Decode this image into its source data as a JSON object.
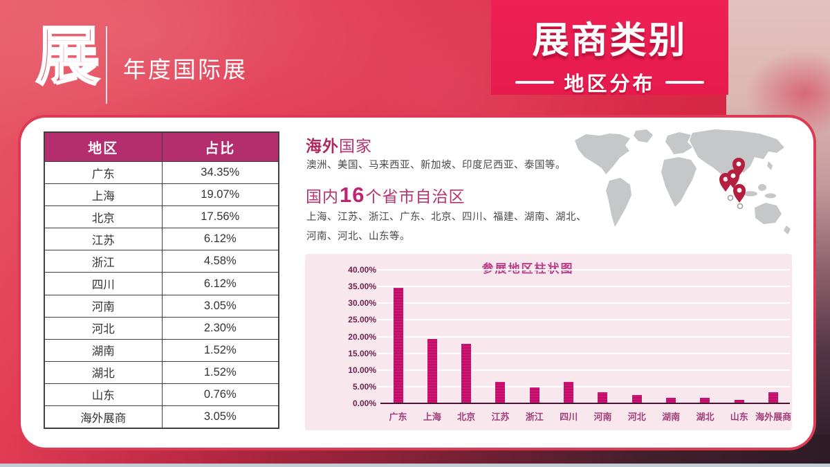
{
  "header": {
    "logo_char": "展",
    "subtitle": "年度国际展",
    "title": "展商类别",
    "title_sub": "地区分布"
  },
  "table": {
    "headers": [
      "地区",
      "占比"
    ],
    "rows": [
      [
        "广东",
        "34.35%"
      ],
      [
        "上海",
        "19.07%"
      ],
      [
        "北京",
        "17.56%"
      ],
      [
        "江苏",
        "6.12%"
      ],
      [
        "浙江",
        "4.58%"
      ],
      [
        "四川",
        "6.12%"
      ],
      [
        "河南",
        "3.05%"
      ],
      [
        "河北",
        "2.30%"
      ],
      [
        "湖南",
        "1.52%"
      ],
      [
        "湖北",
        "1.52%"
      ],
      [
        "山东",
        "0.76%"
      ],
      [
        "海外展商",
        "3.05%"
      ]
    ]
  },
  "overseas": {
    "title_em": "海外",
    "title_rest": "国家",
    "body": "澳洲、美国、马来西亚、新加坡、印度尼西亚、泰国等。"
  },
  "domestic": {
    "title_prefix": "国内",
    "title_count": "16",
    "title_suffix": "个省市自治区",
    "body": "上海、江苏、浙江、广东、北京、四川、福建、湖南、湖北、河南、河北、山东等。"
  },
  "chart_data": {
    "type": "bar",
    "title": "参展地区柱状图",
    "categories": [
      "广东",
      "上海",
      "北京",
      "江苏",
      "浙江",
      "四川",
      "河南",
      "河北",
      "湖南",
      "湖北",
      "山东",
      "海外展商"
    ],
    "values": [
      34.35,
      19.07,
      17.56,
      6.12,
      4.58,
      6.12,
      3.05,
      2.3,
      1.52,
      1.52,
      0.76,
      3.05
    ],
    "y_ticks": [
      "40.00%",
      "35.00%",
      "30.00%",
      "25.00%",
      "20.00%",
      "15.00%",
      "10.00%",
      "5.00%",
      "0.00%"
    ],
    "ylim": [
      0,
      40
    ],
    "grid": true,
    "legend": "none",
    "bar_color": "#c9116e",
    "background": "#f8e7ed"
  },
  "icons": {
    "map": "world-map",
    "pin": "location-pin"
  },
  "colors": {
    "brand_red": "#e61a4c",
    "background_red": "#d92946",
    "table_header_magenta": "#b42d6e",
    "heading_magenta": "#b5336f",
    "bar_magenta": "#c9116e",
    "chart_panel_pink": "#f8e7ed",
    "map_gray": "#c6c7c9",
    "pin_red": "#b41f3f",
    "card_border": "#dc3a55"
  }
}
